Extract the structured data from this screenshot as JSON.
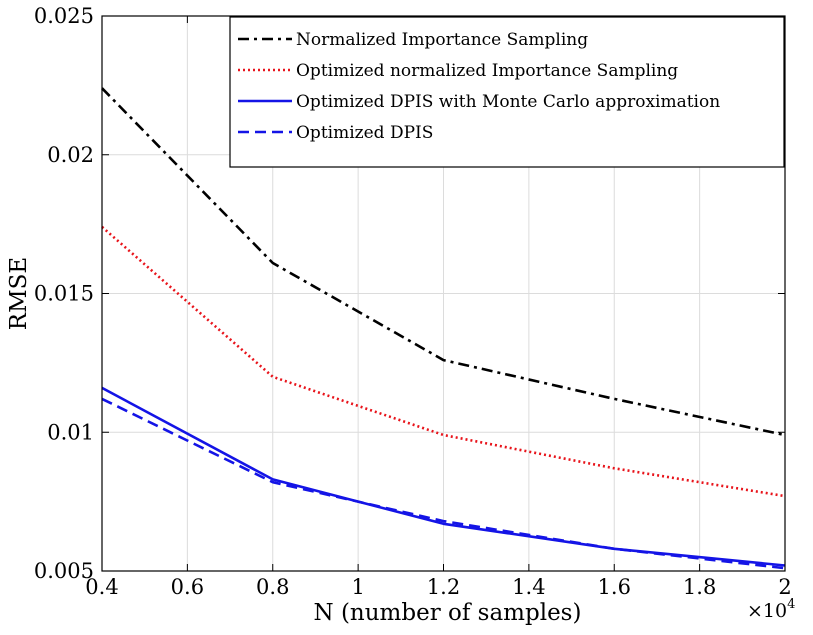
{
  "chart_data": {
    "type": "line",
    "xlabel": "N (number of samples)",
    "ylabel": "RMSE",
    "x_multiplier": {
      "base": "×10",
      "exponent": "4"
    },
    "x": [
      0.4,
      0.8,
      1.2,
      1.6,
      2.0
    ],
    "xlim": [
      0.4,
      2.0
    ],
    "ylim": [
      0.005,
      0.025
    ],
    "xticks": [
      0.4,
      0.6,
      0.8,
      1.0,
      1.2,
      1.4,
      1.6,
      1.8,
      2.0
    ],
    "xtick_labels": [
      "0.4",
      "0.6",
      "0.8",
      "1",
      "1.2",
      "1.4",
      "1.6",
      "1.8",
      "2"
    ],
    "yticks": [
      0.005,
      0.01,
      0.015,
      0.02,
      0.025
    ],
    "ytick_labels": [
      "0.005",
      "0.01",
      "0.015",
      "0.02",
      "0.025"
    ],
    "grid": true,
    "legend_position": "top-right",
    "series": [
      {
        "name": "Normalized Importance Sampling",
        "color": "#000000",
        "dash": "dashdot",
        "values": [
          0.0224,
          0.0161,
          0.0126,
          0.0112,
          0.0099
        ]
      },
      {
        "name": "Optimized normalized Importance Sampling",
        "color": "#e8141b",
        "dash": "dotted",
        "values": [
          0.0174,
          0.012,
          0.0099,
          0.0087,
          0.0077
        ]
      },
      {
        "name": "Optimized DPIS with Monte Carlo approximation",
        "color": "#1414e6",
        "dash": "solid",
        "values": [
          0.0116,
          0.0083,
          0.0067,
          0.0058,
          0.0052
        ]
      },
      {
        "name": "Optimized DPIS",
        "color": "#1414e6",
        "dash": "dashed",
        "values": [
          0.0112,
          0.0082,
          0.0068,
          0.0058,
          0.0051
        ]
      }
    ]
  }
}
